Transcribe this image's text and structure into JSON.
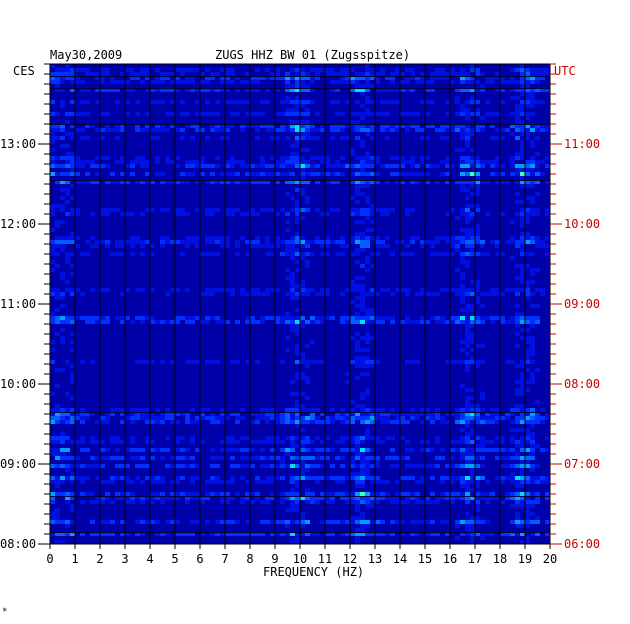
{
  "header": {
    "date": "May30,2009",
    "station": "ZUGS HHZ BW 01 (Zugsspitze)"
  },
  "corner_mark": "*",
  "colors": {
    "background": "#ffffff",
    "plot_bg": "#0000a8",
    "left_axis": "#000000",
    "right_axis": "#cc0000"
  },
  "chart_data": {
    "type": "heatmap",
    "title": "ZUGS HHZ BW 01 (Zugsspitze)",
    "date": "May30,2009",
    "xlabel": "FREQUENCY (HZ)",
    "x_ticks": [
      0,
      1,
      2,
      3,
      4,
      5,
      6,
      7,
      8,
      9,
      10,
      11,
      12,
      13,
      14,
      15,
      16,
      17,
      18,
      19,
      20
    ],
    "xlim": [
      0,
      20
    ],
    "left_axis_label": "CES",
    "right_axis_label": "UTC",
    "left_ticks": [
      "13:00",
      "12:00",
      "11:00",
      "10:00",
      "09:00",
      "08:00"
    ],
    "right_ticks": [
      "11:00",
      "10:00",
      "09:00",
      "08:00",
      "07:00",
      "06:00"
    ],
    "y_range_ces": [
      "08:00",
      "13:50"
    ],
    "vertical_gridlines": true,
    "bright_bands_hz": [
      {
        "center": 9.8,
        "description": "band"
      },
      {
        "center": 12.4,
        "description": "band"
      },
      {
        "center": 16.7,
        "description": "band"
      },
      {
        "center": 18.9,
        "description": "band"
      }
    ]
  }
}
